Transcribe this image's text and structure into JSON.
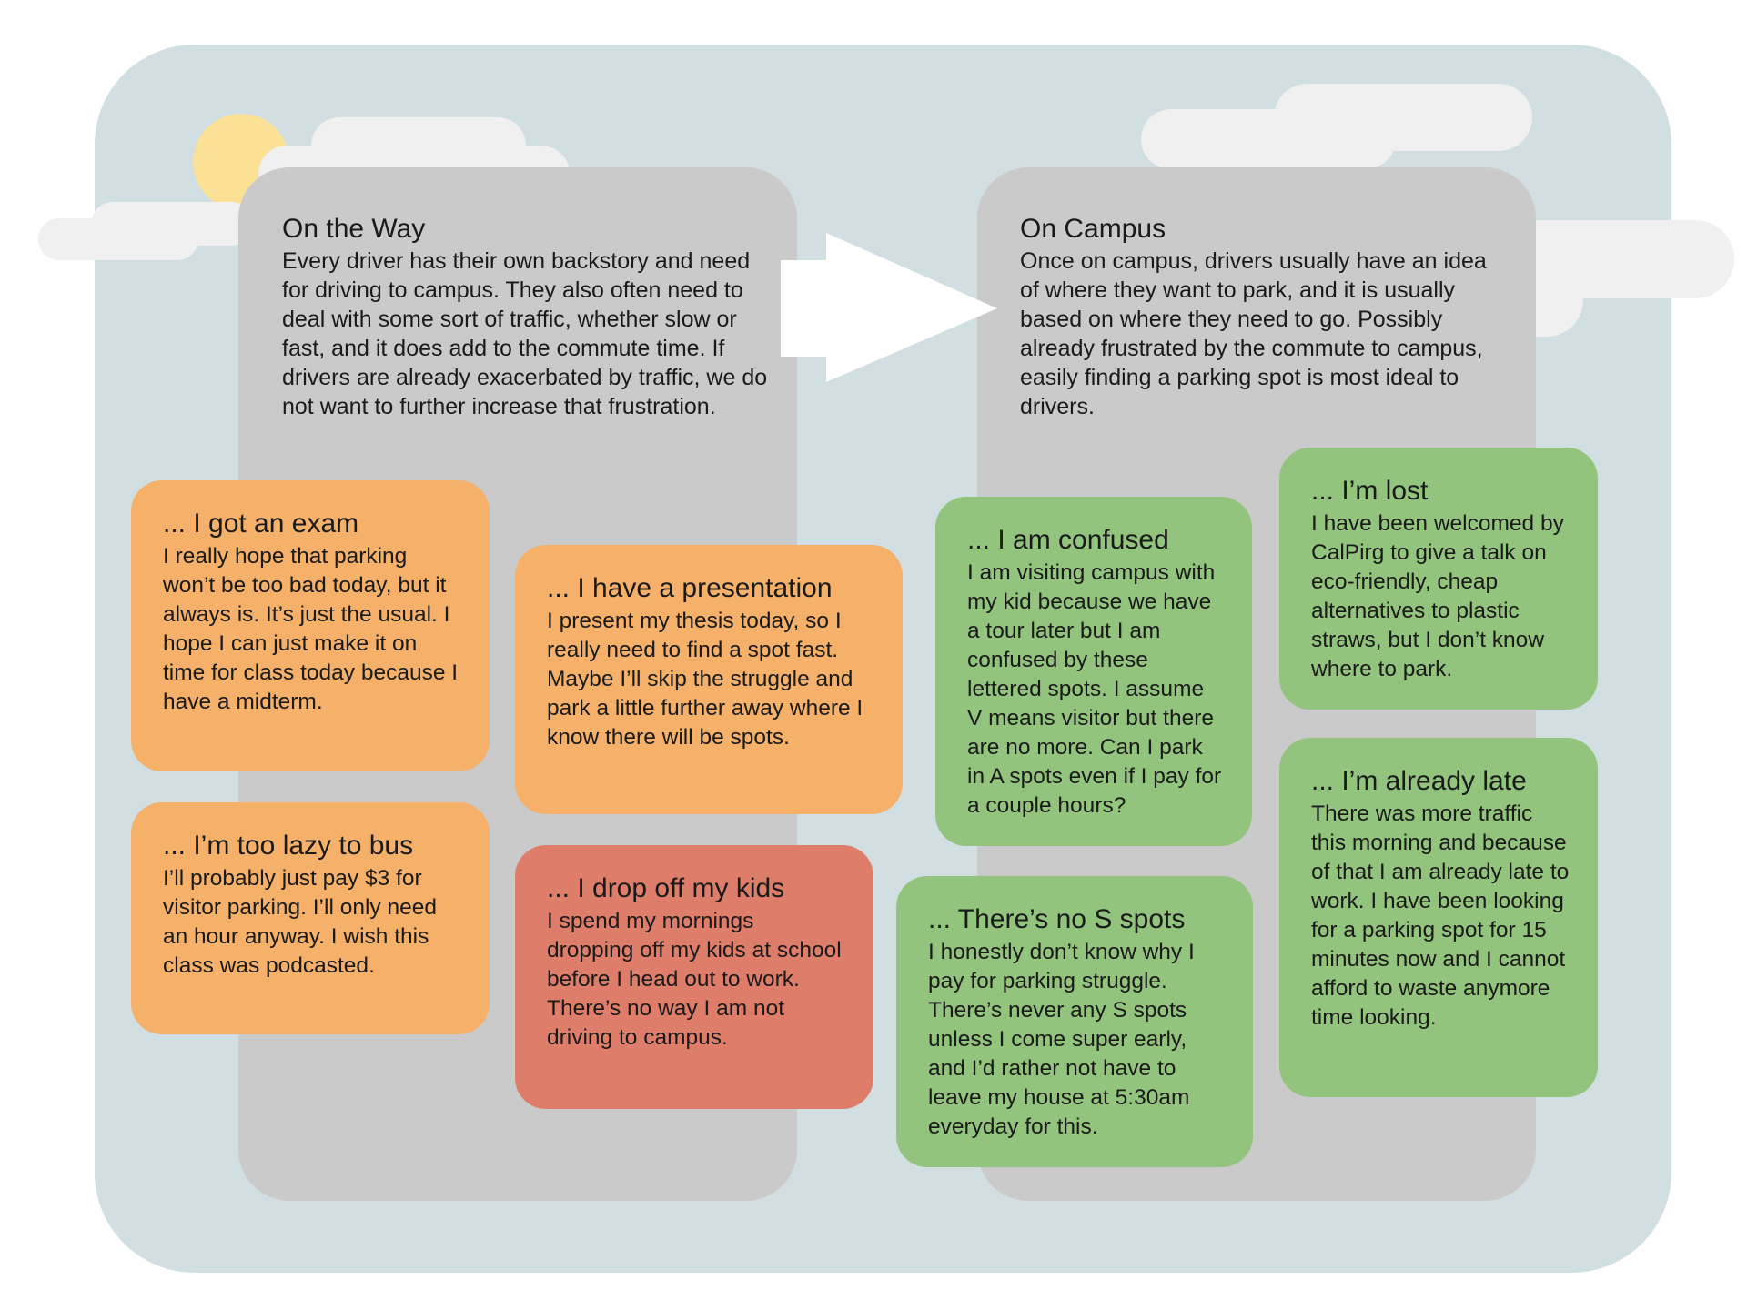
{
  "panels": {
    "on_the_way": {
      "title": "On the Way",
      "body": "Every driver has their own backstory and need for driving to campus. They also often need to deal with some sort of traffic, whether slow or fast, and it does add to the commute time. If drivers are already exacerbated by traffic, we do not want to further increase that frustration."
    },
    "on_campus": {
      "title": "On Campus",
      "body": "Once on campus, drivers usually have an idea of where they want to park, and it is usually based on where they need to go. Possibly already frustrated by the commute to campus, easily finding a parking spot is most ideal to drivers."
    }
  },
  "cards": {
    "exam": {
      "title": "... I got an exam",
      "body": "I really hope that parking won’t be too bad today, but it always is. It’s just the usual. I hope I can just make it on time for class today because I have a midterm."
    },
    "presentation": {
      "title": "... I have a presentation",
      "body": "I present my thesis today, so I really need to find a spot fast. Maybe I’ll skip the struggle and park a little further away where I know there will be spots."
    },
    "lazy": {
      "title": "... I’m too lazy to bus",
      "body": "I’ll probably just pay $3 for visitor parking. I’ll only need an hour anyway. I wish this class was podcasted."
    },
    "kids": {
      "title": "... I drop off my kids",
      "body": "I spend my mornings dropping off my kids at school before I head out to work. There’s no way I am not driving to campus."
    },
    "confused": {
      "title": "... I am confused",
      "body": "I am visiting campus with my kid because we have a tour later but I am confused by these lettered spots. I assume V means visitor but there are no more. Can I park in A spots even if I pay for a couple hours?"
    },
    "lost": {
      "title": "... I’m lost",
      "body": "I have been welcomed by CalPirg to give a talk on eco-friendly, cheap alternatives to plastic straws, but I don’t know where to park."
    },
    "late": {
      "title": "... I’m already late",
      "body": "There was more traffic this morning and because of that I am already late to work. I have been looking for a parking spot for 15 minutes now and I cannot afford to waste anymore time looking."
    },
    "no_s": {
      "title": "... There’s no S spots",
      "body": "I honestly don’t know why I pay for parking struggle. There’s never any S spots unless I come super early, and I’d rather not have to leave my house at 5:30am everyday for this."
    }
  },
  "colors": {
    "sky": "#d1dfe3",
    "panel": "#cacaca",
    "cloud": "#f0f0f0",
    "sun": "#fbe195",
    "orange": "#f5b06a",
    "red": "#df7d6b",
    "green": "#93c47d"
  }
}
